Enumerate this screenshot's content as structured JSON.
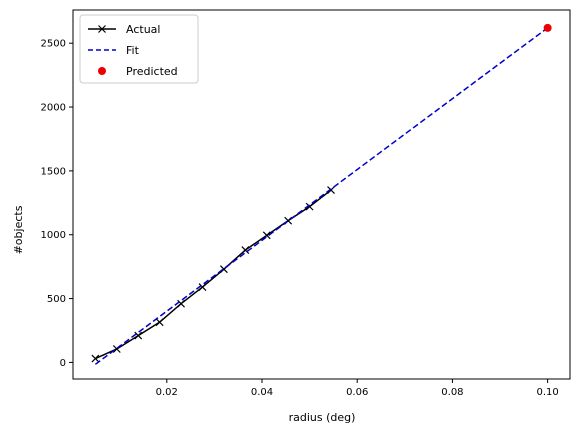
{
  "chart_data": {
    "type": "line",
    "title": "",
    "xlabel": "radius (deg)",
    "ylabel": "#objects",
    "xlim": [
      0.0003,
      0.1047
    ],
    "ylim": [
      -130,
      2760
    ],
    "xticks": [
      0.02,
      0.04,
      0.06,
      0.08,
      0.1
    ],
    "xtick_labels": [
      "0.02",
      "0.04",
      "0.06",
      "0.08",
      "0.10"
    ],
    "yticks": [
      0,
      500,
      1000,
      1500,
      2000,
      2500
    ],
    "ytick_labels": [
      "0",
      "500",
      "1000",
      "1500",
      "2000",
      "2500"
    ],
    "grid": false,
    "legend_position": "top-left",
    "series": [
      {
        "name": "Actual",
        "kind": "line-marker",
        "marker": "x",
        "color": "#000000",
        "x": [
          0.005,
          0.0095,
          0.014,
          0.0185,
          0.023,
          0.0275,
          0.032,
          0.0365,
          0.041,
          0.0455,
          0.05,
          0.0545
        ],
        "y": [
          30,
          105,
          210,
          315,
          460,
          590,
          730,
          880,
          995,
          1110,
          1220,
          1350
        ]
      },
      {
        "name": "Fit",
        "kind": "dashed-line",
        "color": "#0000cc",
        "x": [
          0.005,
          0.1
        ],
        "y": [
          -15,
          2620
        ]
      },
      {
        "name": "Predicted",
        "kind": "point",
        "color": "#ee0000",
        "x": [
          0.1
        ],
        "y": [
          2620
        ]
      }
    ]
  }
}
